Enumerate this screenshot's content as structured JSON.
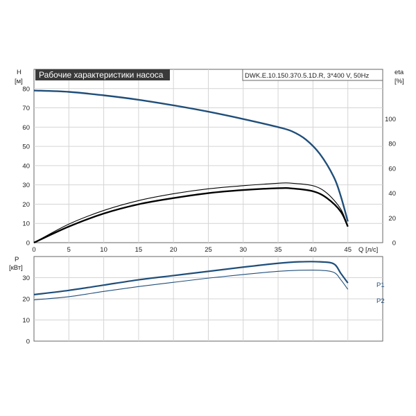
{
  "colors": {
    "head": "#1f4e79",
    "eta": "#000000",
    "power": "#1f4e79",
    "grid": "#d4d4d4",
    "frame": "#666666",
    "title_bg": "#3a3a3a"
  },
  "chart_data": [
    {
      "type": "line",
      "title": "Рабочие характеристики насоса",
      "subtitle": "DWK.E.10.150.370.5.1D.R, 3*400 V, 50Hz",
      "xlabel": "Q [л/с]",
      "ylabel_left_symbol": "H",
      "ylabel_left_unit": "[м]",
      "ylabel_right_symbol": "eta",
      "ylabel_right_unit": "[%]",
      "xlim": [
        0,
        50
      ],
      "ylim_left": [
        0,
        90
      ],
      "ylim_right": [
        0,
        140
      ],
      "x_ticks": [
        0,
        5,
        10,
        15,
        20,
        25,
        30,
        35,
        40,
        45
      ],
      "y_ticks_left": [
        0,
        10,
        20,
        30,
        40,
        50,
        60,
        70,
        80
      ],
      "y_ticks_right": [
        0,
        20,
        40,
        60,
        80,
        100
      ],
      "grid": true,
      "series": [
        {
          "axis": "left",
          "x": [
            0,
            5,
            10,
            15,
            20,
            25,
            30,
            35,
            37,
            39,
            41,
            43,
            44,
            45
          ],
          "values": [
            79,
            78.3,
            76.5,
            74.2,
            71.3,
            68,
            64.2,
            60,
            57.8,
            53.5,
            46,
            34,
            24,
            11
          ]
        },
        {
          "axis": "right",
          "x": [
            0,
            5,
            10,
            15,
            20,
            25,
            30,
            35,
            37,
            40,
            42,
            44,
            45
          ],
          "values": [
            0,
            15,
            26,
            34,
            39.5,
            43.5,
            46,
            48,
            48,
            46,
            40,
            27,
            13
          ]
        },
        {
          "axis": "right",
          "x": [
            0,
            5,
            10,
            15,
            20,
            25,
            30,
            35,
            37,
            40,
            42,
            44,
            45
          ],
          "values": [
            0,
            13,
            23.5,
            31,
            36,
            40,
            42.5,
            44,
            43.8,
            41.5,
            36,
            25,
            13
          ]
        }
      ]
    },
    {
      "type": "line",
      "ylabel_symbol": "P",
      "ylabel_unit": "[кВт]",
      "xlim": [
        0,
        50
      ],
      "ylim": [
        0,
        40
      ],
      "y_ticks": [
        0,
        10,
        20,
        30
      ],
      "grid": true,
      "series": [
        {
          "name": "P1",
          "x": [
            0,
            5,
            10,
            15,
            20,
            25,
            30,
            35,
            38,
            41,
            43,
            44,
            45
          ],
          "values": [
            22,
            24,
            26.5,
            29,
            31,
            33,
            35,
            36.8,
            37.5,
            37.5,
            36.5,
            32,
            27.5
          ]
        },
        {
          "name": "P2",
          "x": [
            0,
            5,
            10,
            15,
            20,
            25,
            30,
            35,
            38,
            41,
            43,
            44,
            45
          ],
          "values": [
            19.5,
            21,
            23.5,
            25.8,
            27.8,
            29.8,
            31.5,
            33,
            33.5,
            33.5,
            32.5,
            29,
            24.5
          ]
        }
      ]
    }
  ]
}
